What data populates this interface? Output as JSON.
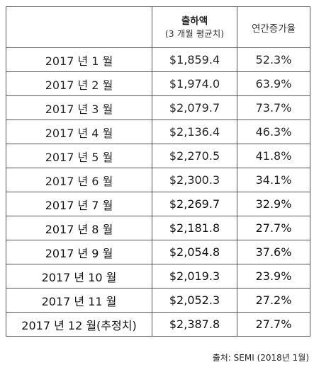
{
  "table": {
    "headers": {
      "col1": "",
      "col2_title": "출하액",
      "col2_sub": "(3 개월 평균치)",
      "col3": "연간증가율"
    },
    "rows": [
      {
        "period": "2017 년 1 월",
        "value": "$1,859.4",
        "growth": "52.3%"
      },
      {
        "period": "2017 년 2 월",
        "value": "$1,974.0",
        "growth": "63.9%"
      },
      {
        "period": "2017 년 3 월",
        "value": "$2,079.7",
        "growth": "73.7%"
      },
      {
        "period": "2017 년 4 월",
        "value": "$2,136.4",
        "growth": "46.3%"
      },
      {
        "period": "2017 년 5 월",
        "value": "$2,270.5",
        "growth": "41.8%"
      },
      {
        "period": "2017 년 6 월",
        "value": "$2,300.3",
        "growth": "34.1%"
      },
      {
        "period": "2017 년 7 월",
        "value": "$2,269.7",
        "growth": "32.9%"
      },
      {
        "period": "2017 년 8 월",
        "value": "$2,181.8",
        "growth": "27.7%"
      },
      {
        "period": "2017 년 9 월",
        "value": "$2,054.8",
        "growth": "37.6%"
      },
      {
        "period": "2017 년 10 월",
        "value": "$2,019.3",
        "growth": "23.9%"
      },
      {
        "period": "2017 년 11 월",
        "value": "$2,052.3",
        "growth": "27.2%"
      },
      {
        "period": "2017 년 12 월(추정치)",
        "value": "$2,387.8",
        "growth": "27.7%"
      }
    ]
  },
  "source": "출처: SEMI (2018년 1월)"
}
